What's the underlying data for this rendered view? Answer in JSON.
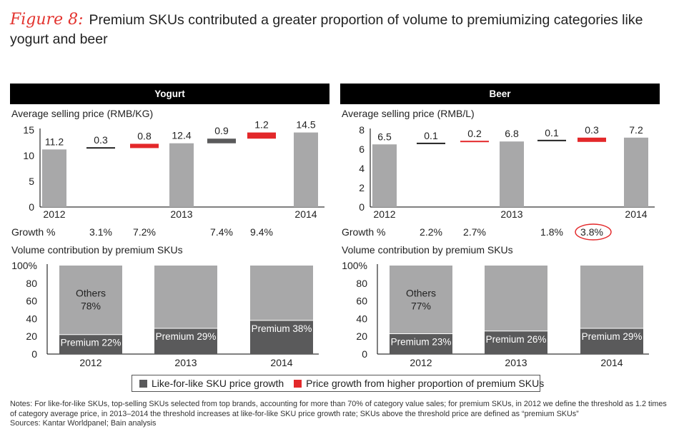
{
  "title": {
    "figure_label": "Figure 8:",
    "text": "Premium SKUs contributed a greater proportion of volume to premiumizing categories like yogurt and beer"
  },
  "colors": {
    "gray": "#a8a8a9",
    "dark": "#5a5a5b",
    "red": "#e3282a",
    "header": "#000000"
  },
  "labels": {
    "growth": "Growth %",
    "volume_title": "Volume contribution by premium SKUs"
  },
  "legend": {
    "items": [
      {
        "label": "Like-for-like SKU price growth",
        "color": "#5a5a5b"
      },
      {
        "label": "Price growth from higher proportion of premium SKUs",
        "color": "#e3282a"
      }
    ]
  },
  "notes": {
    "line1": "Notes: For like-for-like SKUs, top-selling SKUs selected from top brands, accounting for more than 70% of category value sales; for premium SKUs, in 2012 we define the threshold as 1.2 times of category average price, in 2013–2014 the threshold increases at like-for-like SKU price growth rate; SKUs above the threshold price are defined as “premium SKUs”",
    "line2": "Sources: Kantar Worldpanel; Bain analysis"
  },
  "chart_data": [
    {
      "type": "bar",
      "panel": "Yogurt",
      "title": "Average selling price (RMB/KG)",
      "y_ticks": [
        0,
        5,
        10,
        15
      ],
      "ylim": [
        0,
        15
      ],
      "steps": [
        {
          "kind": "total",
          "x_label": "2012",
          "value": 11.2,
          "label": "11.2"
        },
        {
          "kind": "like-for-like",
          "delta": 0.3,
          "label": "0.3",
          "growth": "3.1%"
        },
        {
          "kind": "premium",
          "delta": 0.8,
          "label": "0.8",
          "growth": "7.2%"
        },
        {
          "kind": "total",
          "x_label": "2013",
          "value": 12.4,
          "label": "12.4"
        },
        {
          "kind": "like-for-like",
          "delta": 0.9,
          "label": "0.9",
          "growth": "7.4%"
        },
        {
          "kind": "premium",
          "delta": 1.2,
          "label": "1.2",
          "growth": "9.4%"
        },
        {
          "kind": "total",
          "x_label": "2014",
          "value": 14.5,
          "label": "14.5"
        }
      ],
      "circled_growth_index": -1,
      "volume": {
        "y_ticks": [
          "0",
          "20",
          "40",
          "60",
          "80",
          "100%"
        ],
        "categories": [
          "2012",
          "2013",
          "2014"
        ],
        "premium_values": [
          22,
          29,
          38
        ],
        "premium_labels": [
          "Premium 22%",
          "Premium 29%",
          "Premium 38%"
        ],
        "others_label": "Others",
        "others_value": "78%"
      }
    },
    {
      "type": "bar",
      "panel": "Beer",
      "title": "Average selling price (RMB/L)",
      "y_ticks": [
        0,
        2,
        4,
        6,
        8
      ],
      "ylim": [
        0,
        8
      ],
      "steps": [
        {
          "kind": "total",
          "x_label": "2012",
          "value": 6.5,
          "label": "6.5"
        },
        {
          "kind": "like-for-like",
          "delta": 0.1,
          "label": "0.1",
          "growth": "2.2%"
        },
        {
          "kind": "premium",
          "delta": 0.2,
          "label": "0.2",
          "growth": "2.7%"
        },
        {
          "kind": "total",
          "x_label": "2013",
          "value": 6.8,
          "label": "6.8"
        },
        {
          "kind": "like-for-like",
          "delta": 0.1,
          "label": "0.1",
          "growth": "1.8%"
        },
        {
          "kind": "premium",
          "delta": 0.3,
          "label": "0.3",
          "growth": "3.8%"
        },
        {
          "kind": "total",
          "x_label": "2014",
          "value": 7.2,
          "label": "7.2"
        }
      ],
      "circled_growth_index": 5,
      "volume": {
        "y_ticks": [
          "0",
          "20",
          "40",
          "60",
          "80",
          "100%"
        ],
        "categories": [
          "2012",
          "2013",
          "2014"
        ],
        "premium_values": [
          23,
          26,
          29
        ],
        "premium_labels": [
          "Premium 23%",
          "Premium 26%",
          "Premium 29%"
        ],
        "others_label": "Others",
        "others_value": "77%"
      }
    }
  ]
}
